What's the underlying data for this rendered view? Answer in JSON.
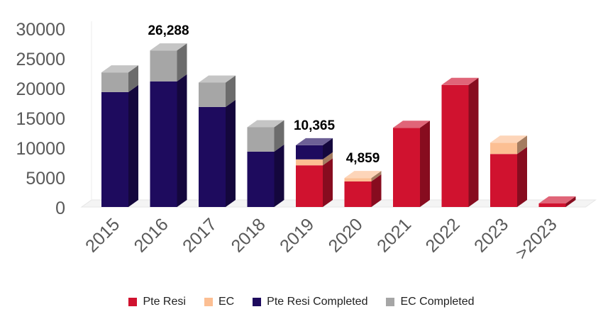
{
  "chart_data": {
    "type": "bar",
    "stacked": true,
    "three_d": true,
    "categories": [
      "2015",
      "2016",
      "2017",
      "2018",
      "2019",
      "2020",
      "2021",
      "2022",
      "2023",
      ">2023"
    ],
    "series": [
      {
        "name": "Pte Resi",
        "color": "#d0122f",
        "values": [
          0,
          0,
          0,
          0,
          7000,
          4300,
          13300,
          20500,
          8900,
          600
        ]
      },
      {
        "name": "EC",
        "color": "#fcbf93",
        "values": [
          0,
          0,
          0,
          0,
          1000,
          559,
          0,
          0,
          1900,
          0
        ]
      },
      {
        "name": "Pte Resi Completed",
        "color": "#1e0b5e",
        "values": [
          19300,
          21100,
          16800,
          9300,
          2365,
          0,
          0,
          0,
          0,
          0
        ]
      },
      {
        "name": "EC Completed",
        "color": "#a6a6a6",
        "values": [
          3300,
          5188,
          4100,
          4100,
          0,
          0,
          0,
          0,
          0,
          0
        ]
      }
    ],
    "data_labels": [
      {
        "category": "2016",
        "text": "26,288"
      },
      {
        "category": "2019",
        "text": "10,365"
      },
      {
        "category": "2020",
        "text": "4,859"
      }
    ],
    "ylim": [
      0,
      30000
    ],
    "yticks": [
      "0",
      "5000",
      "10000",
      "15000",
      "20000",
      "25000",
      "30000"
    ],
    "grid": false,
    "legend_position": "bottom"
  }
}
